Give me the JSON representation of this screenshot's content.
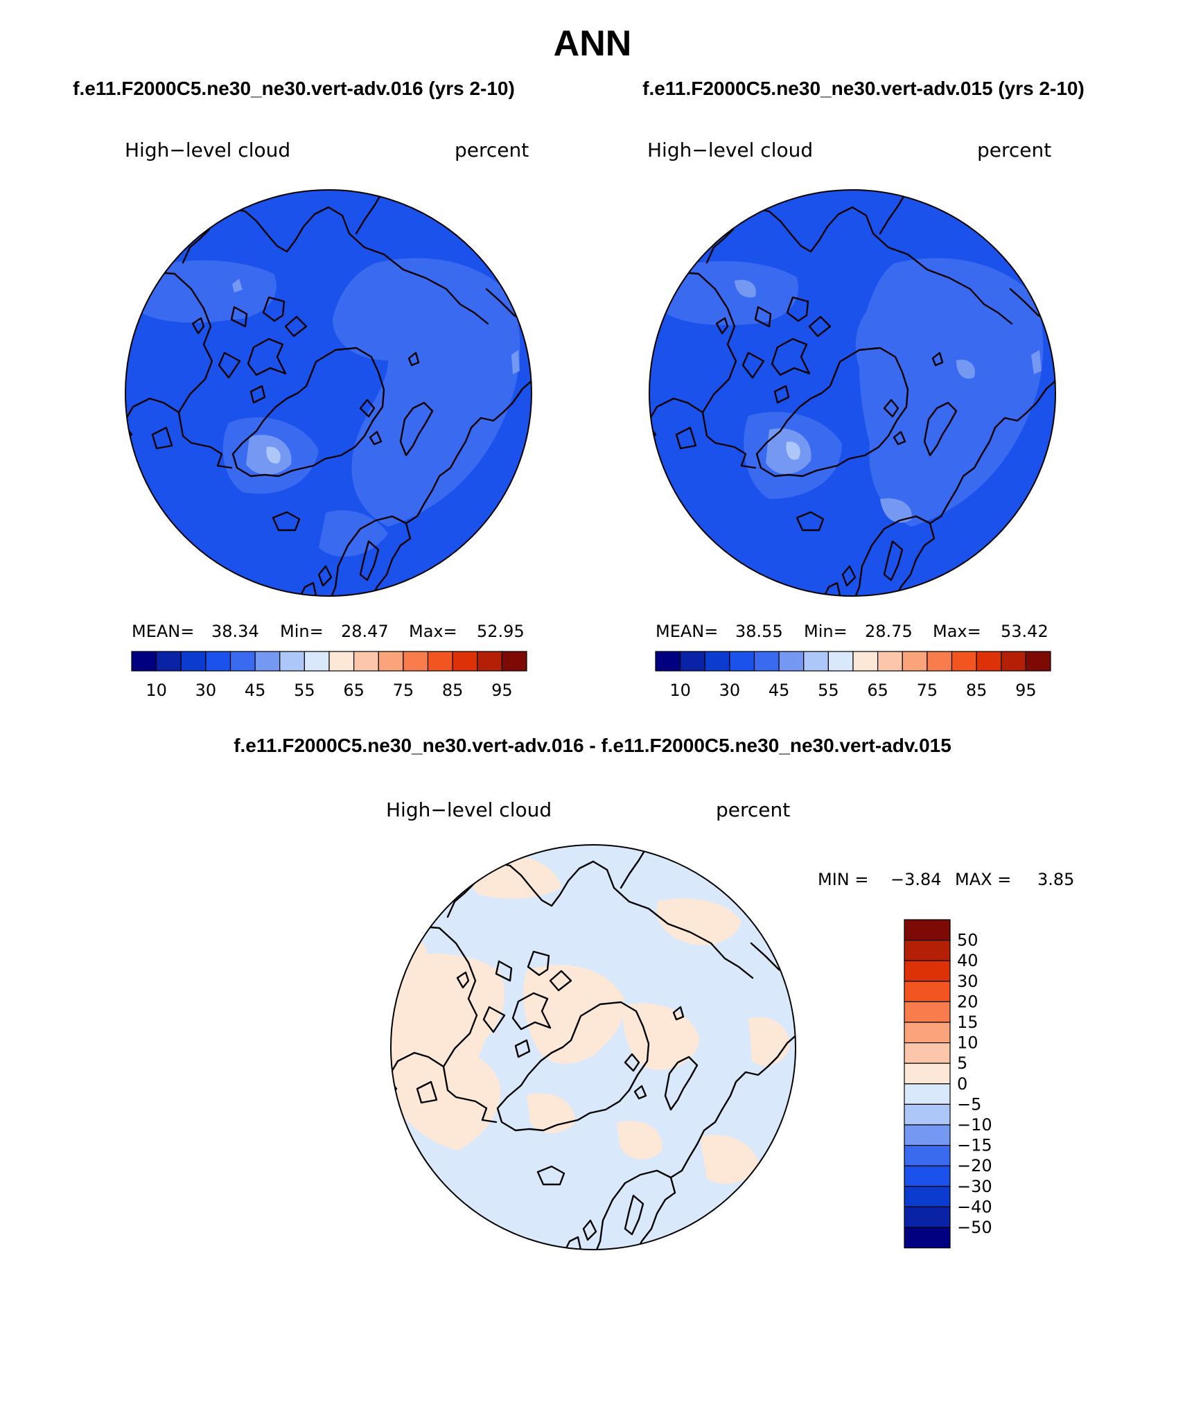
{
  "title": "ANN",
  "panels": [
    {
      "case_title": "f.e11.F2000C5.ne30_ne30.vert-adv.016 (yrs 2-10)",
      "variable": "High−level cloud",
      "units": "percent",
      "stats": {
        "mean_label": "MEAN=",
        "mean": "38.34",
        "min_label": "Min=",
        "min": "28.47",
        "max_label": "Max=",
        "max": "52.95"
      }
    },
    {
      "case_title": "f.e11.F2000C5.ne30_ne30.vert-adv.015 (yrs 2-10)",
      "variable": "High−level cloud",
      "units": "percent",
      "stats": {
        "mean_label": "MEAN=",
        "mean": "38.55",
        "min_label": "Min=",
        "min": "28.75",
        "max_label": "Max=",
        "max": "53.42"
      }
    }
  ],
  "colorbar": {
    "colors": [
      "#000080",
      "#0a23a6",
      "#0c3bd0",
      "#1b52ec",
      "#3a6af0",
      "#7598f3",
      "#adc7f8",
      "#d9e9fb",
      "#fde8d7",
      "#fcc6aa",
      "#fba37b",
      "#f87c4c",
      "#f35520",
      "#dd3208",
      "#b32005",
      "#7e0a05"
    ],
    "ticks": [
      "10",
      "30",
      "45",
      "55",
      "65",
      "75",
      "85",
      "95"
    ]
  },
  "difference": {
    "title": "f.e11.F2000C5.ne30_ne30.vert-adv.016 - f.e11.F2000C5.ne30_ne30.vert-adv.015",
    "variable": "High−level cloud",
    "units": "percent",
    "min_label": "MIN =",
    "min": "−3.84",
    "max_label": "MAX =",
    "max": "3.85",
    "legend_colors": [
      "#7e0a05",
      "#b32005",
      "#dd3208",
      "#f35520",
      "#f87c4c",
      "#fba37b",
      "#fcc6aa",
      "#fde8d7",
      "#d9e9fb",
      "#adc7f8",
      "#7598f3",
      "#3a6af0",
      "#1b52ec",
      "#0c3bd0",
      "#0a23a6",
      "#000080"
    ],
    "legend_labels": [
      "50",
      "40",
      "30",
      "20",
      "15",
      "10",
      "5",
      "0",
      "−5",
      "−10",
      "−15",
      "−20",
      "−30",
      "−40",
      "−50"
    ]
  },
  "icons": {
    "coastline": "coastline-outline",
    "polar_map": "north-polar-stereographic-map"
  }
}
